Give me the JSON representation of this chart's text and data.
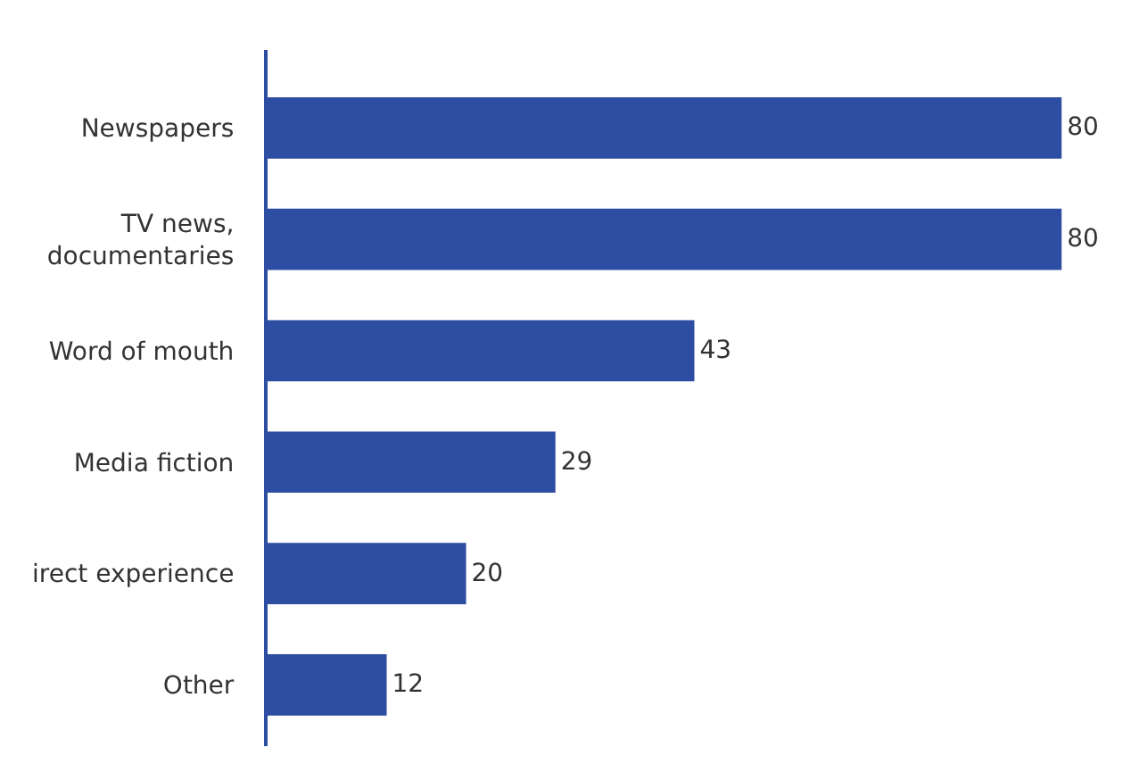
{
  "chart_data": {
    "type": "bar",
    "orientation": "horizontal",
    "categories": [
      "Newspapers",
      "TV news,\ndocumentaries",
      "Word of mouth",
      "Media fiction",
      "irect experience",
      "Other"
    ],
    "values": [
      80,
      80,
      43,
      29,
      20,
      12
    ],
    "color": "#2d4da2",
    "data_labels": true
  }
}
